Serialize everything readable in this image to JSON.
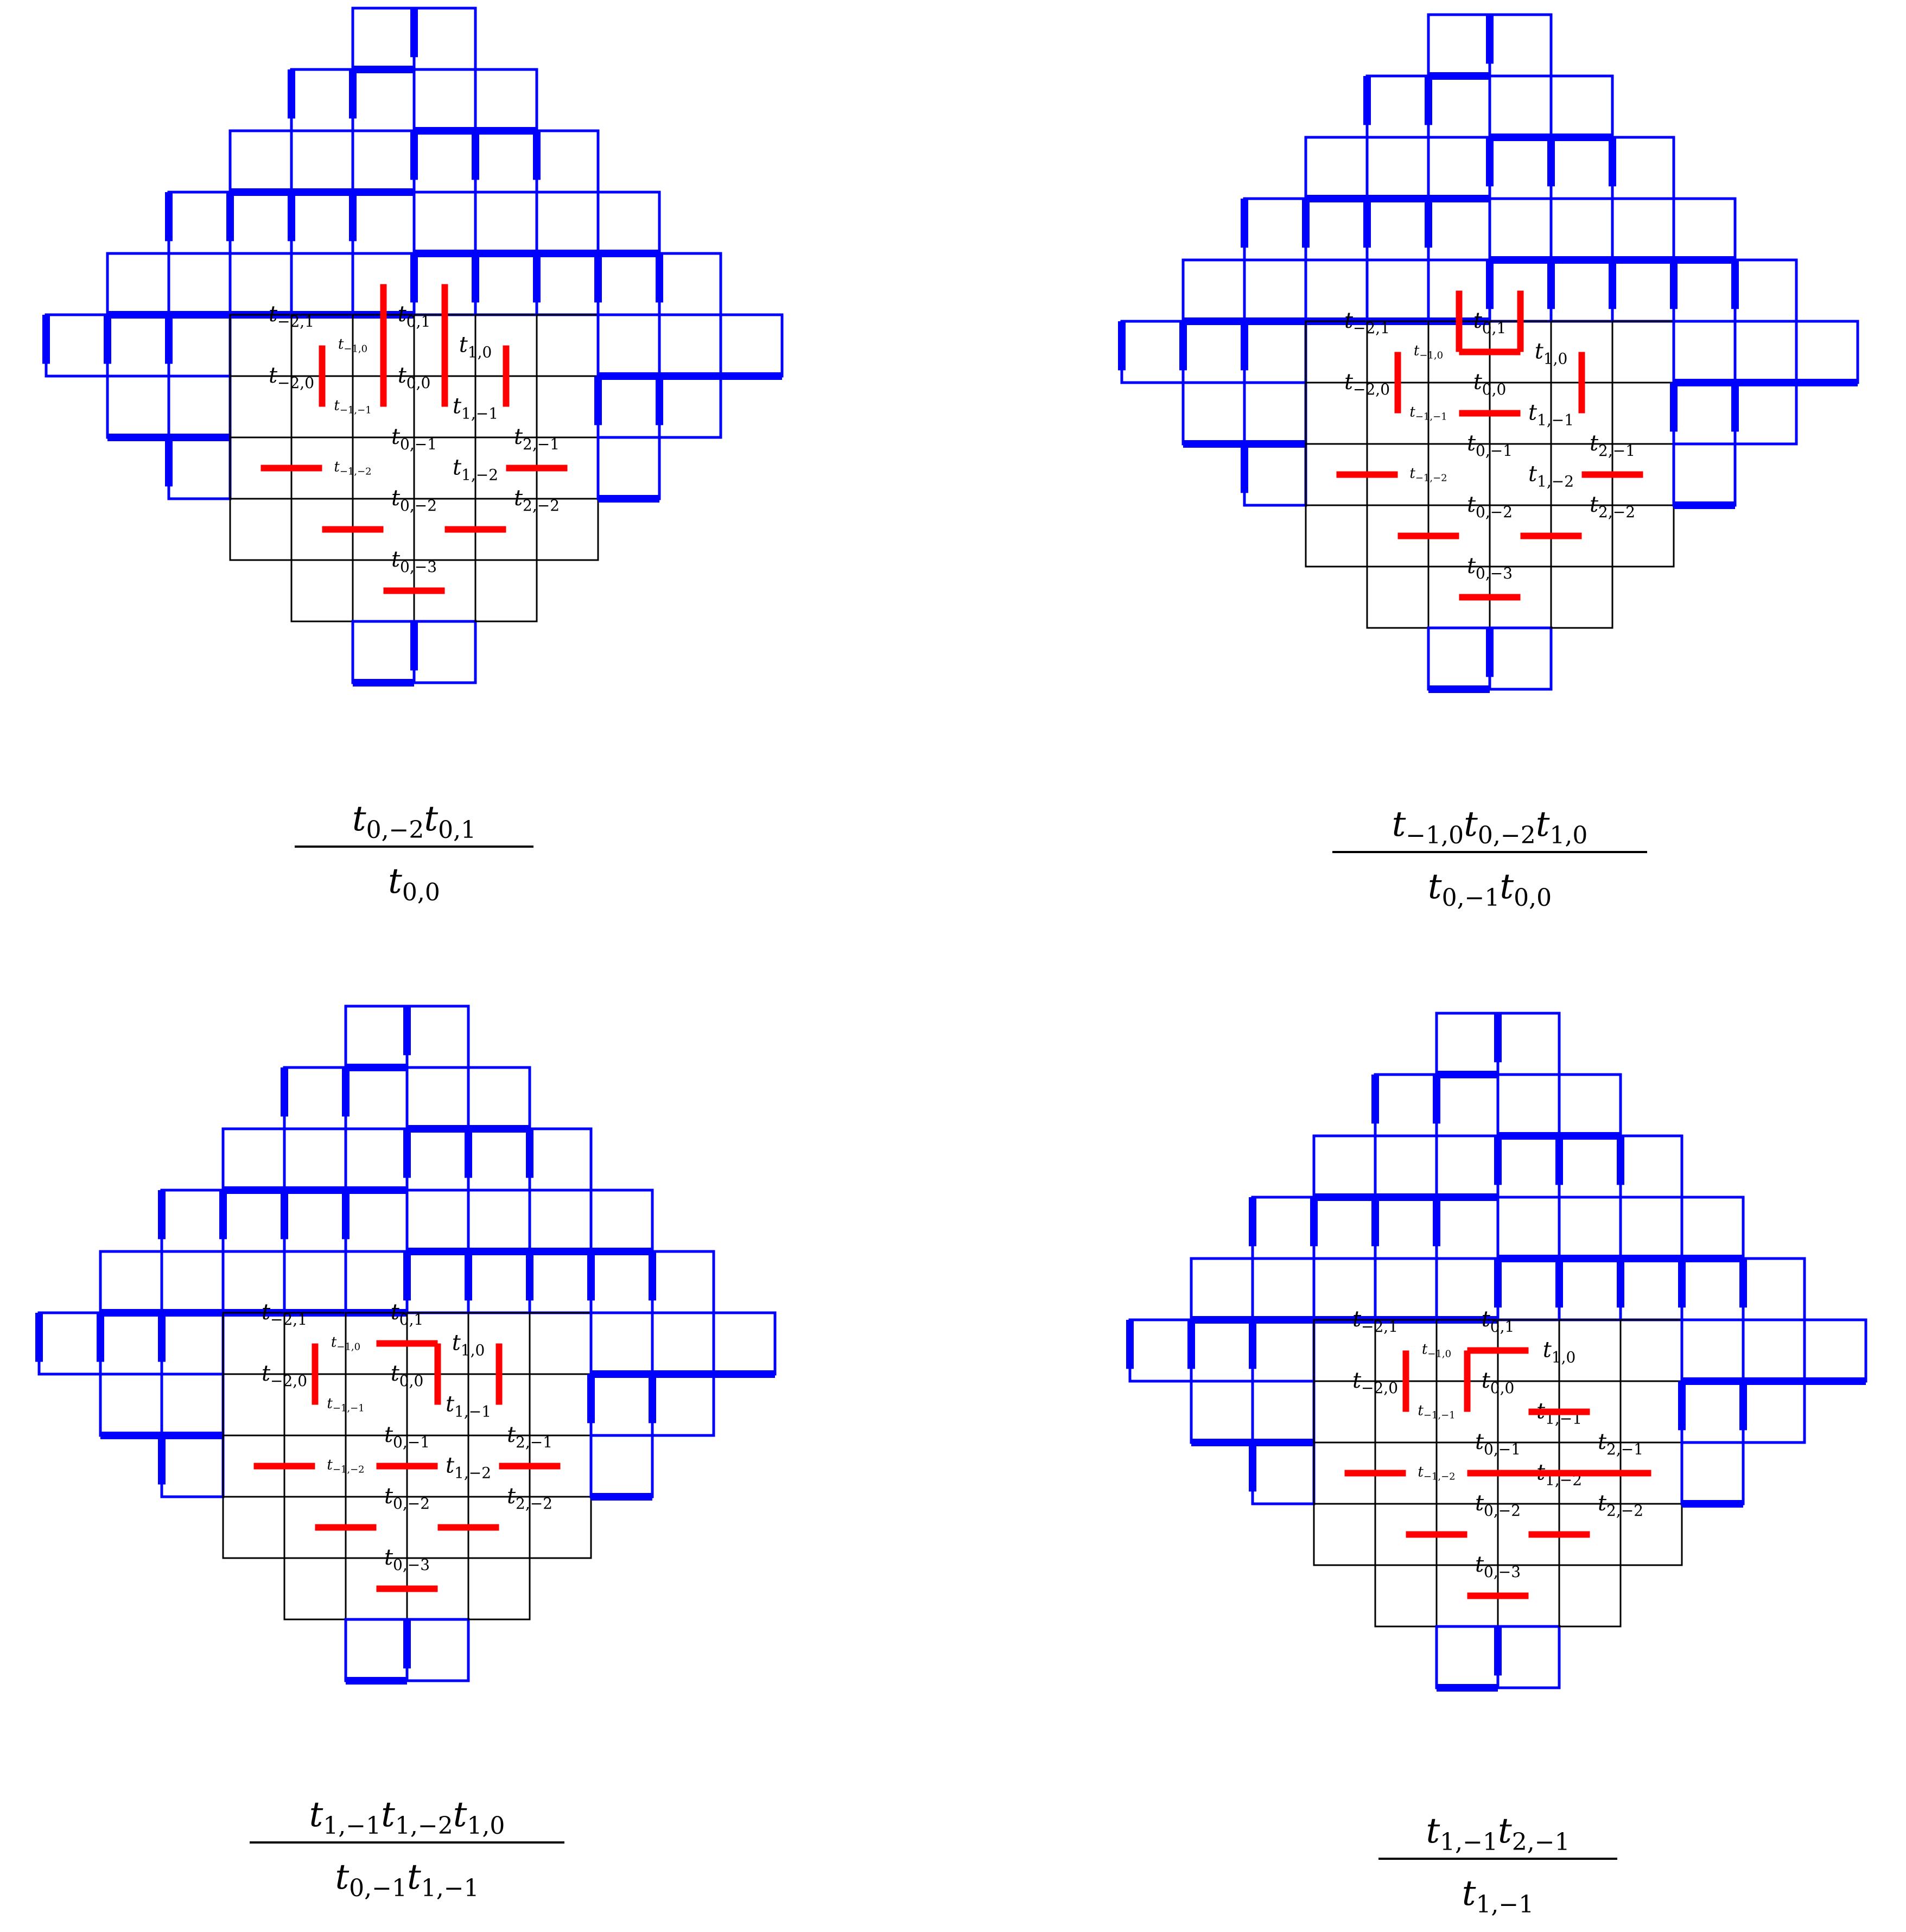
{
  "colors": {
    "tiling_lines": "#0000ff",
    "highlight_edges": "#ff0000",
    "cell_borders": "#000000",
    "background": "#ffffff"
  },
  "labels": [
    {
      "var": "t",
      "sub": "0,1",
      "i": 0,
      "j": 1
    },
    {
      "var": "t",
      "sub": "0,0",
      "i": 0,
      "j": 0
    },
    {
      "var": "t",
      "sub": "1,0",
      "i": 1,
      "j": 0
    },
    {
      "var": "t",
      "sub": "−1,0",
      "i": -1,
      "j": 0
    },
    {
      "var": "t",
      "sub": "−2,0",
      "i": -2,
      "j": 0
    },
    {
      "var": "t",
      "sub": "1,−1",
      "i": 1,
      "j": -1
    },
    {
      "var": "t",
      "sub": "2,−1",
      "i": 2,
      "j": -1
    },
    {
      "var": "t",
      "sub": "0,−1",
      "i": 0,
      "j": -1
    },
    {
      "var": "t",
      "sub": "−2,1",
      "i": -2,
      "j": 1
    },
    {
      "var": "t",
      "sub": "−1,−1",
      "i": -1,
      "j": -1
    },
    {
      "var": "t",
      "sub": "2,−2",
      "i": 2,
      "j": -2
    },
    {
      "var": "t",
      "sub": "1,−2",
      "i": 1,
      "j": -2
    },
    {
      "var": "t",
      "sub": "−1,−2",
      "i": -1,
      "j": -2
    },
    {
      "var": "t",
      "sub": "0,−2",
      "i": 0,
      "j": -2
    },
    {
      "var": "t",
      "sub": "0,−3",
      "i": 0,
      "j": -3
    }
  ],
  "panels": [
    {
      "id": "top-left",
      "formula": {
        "numerator": [
          {
            "var": "t",
            "sub": "0,−2"
          },
          {
            "var": "t",
            "sub": "0,1"
          }
        ],
        "denominator": [
          {
            "var": "t",
            "sub": "0,0"
          }
        ]
      },
      "red_edges": [
        [
          "v",
          0,
          -1
        ],
        [
          "v",
          1,
          -1
        ],
        [
          "v",
          -1,
          0
        ],
        [
          "v",
          2,
          0
        ],
        [
          "v",
          0,
          0
        ],
        [
          "v",
          1,
          0
        ],
        [
          "h",
          -2,
          2
        ],
        [
          "h",
          -1,
          3
        ],
        [
          "h",
          0,
          4
        ],
        [
          "h",
          1,
          3
        ],
        [
          "h",
          2,
          2
        ]
      ]
    },
    {
      "id": "top-right",
      "formula": {
        "numerator": [
          {
            "var": "t",
            "sub": "−1,0"
          },
          {
            "var": "t",
            "sub": "0,−2"
          },
          {
            "var": "t",
            "sub": "1,0"
          }
        ],
        "denominator": [
          {
            "var": "t",
            "sub": "0,−1"
          },
          {
            "var": "t",
            "sub": "0,0"
          }
        ]
      },
      "red_edges": [
        [
          "h",
          0,
          0
        ],
        [
          "h",
          0,
          1
        ],
        [
          "v",
          -1,
          0
        ],
        [
          "v",
          2,
          0
        ],
        [
          "v",
          0,
          -1
        ],
        [
          "v",
          1,
          -1
        ],
        [
          "h",
          -2,
          2
        ],
        [
          "h",
          -1,
          3
        ],
        [
          "h",
          0,
          4
        ],
        [
          "h",
          1,
          3
        ],
        [
          "h",
          2,
          2
        ]
      ]
    },
    {
      "id": "bottom-left",
      "formula": {
        "numerator": [
          {
            "var": "t",
            "sub": "1,−1"
          },
          {
            "var": "t",
            "sub": "1,−2"
          },
          {
            "var": "t",
            "sub": "1,0"
          }
        ],
        "denominator": [
          {
            "var": "t",
            "sub": "0,−1"
          },
          {
            "var": "t",
            "sub": "1,−1"
          }
        ]
      },
      "red_edges": [
        [
          "h",
          0,
          0
        ],
        [
          "v",
          -1,
          0
        ],
        [
          "v",
          1,
          0
        ],
        [
          "v",
          2,
          0
        ],
        [
          "h",
          -2,
          2
        ],
        [
          "h",
          0,
          2
        ],
        [
          "h",
          2,
          2
        ],
        [
          "h",
          -1,
          3
        ],
        [
          "h",
          1,
          3
        ],
        [
          "h",
          0,
          4
        ]
      ]
    },
    {
      "id": "bottom-right",
      "formula": {
        "numerator": [
          {
            "var": "t",
            "sub": "1,−1"
          },
          {
            "var": "t",
            "sub": "2,−1"
          }
        ],
        "denominator": [
          {
            "var": "t",
            "sub": "1,−1"
          }
        ]
      },
      "red_edges": [
        [
          "h",
          0,
          0
        ],
        [
          "h",
          1,
          1
        ],
        [
          "v",
          -1,
          0
        ],
        [
          "v",
          0,
          0
        ],
        [
          "h",
          1,
          2
        ],
        [
          "h",
          -2,
          2
        ],
        [
          "h",
          0,
          2
        ],
        [
          "h",
          2,
          2
        ],
        [
          "h",
          -1,
          3
        ],
        [
          "h",
          1,
          3
        ],
        [
          "h",
          0,
          4
        ]
      ]
    }
  ]
}
